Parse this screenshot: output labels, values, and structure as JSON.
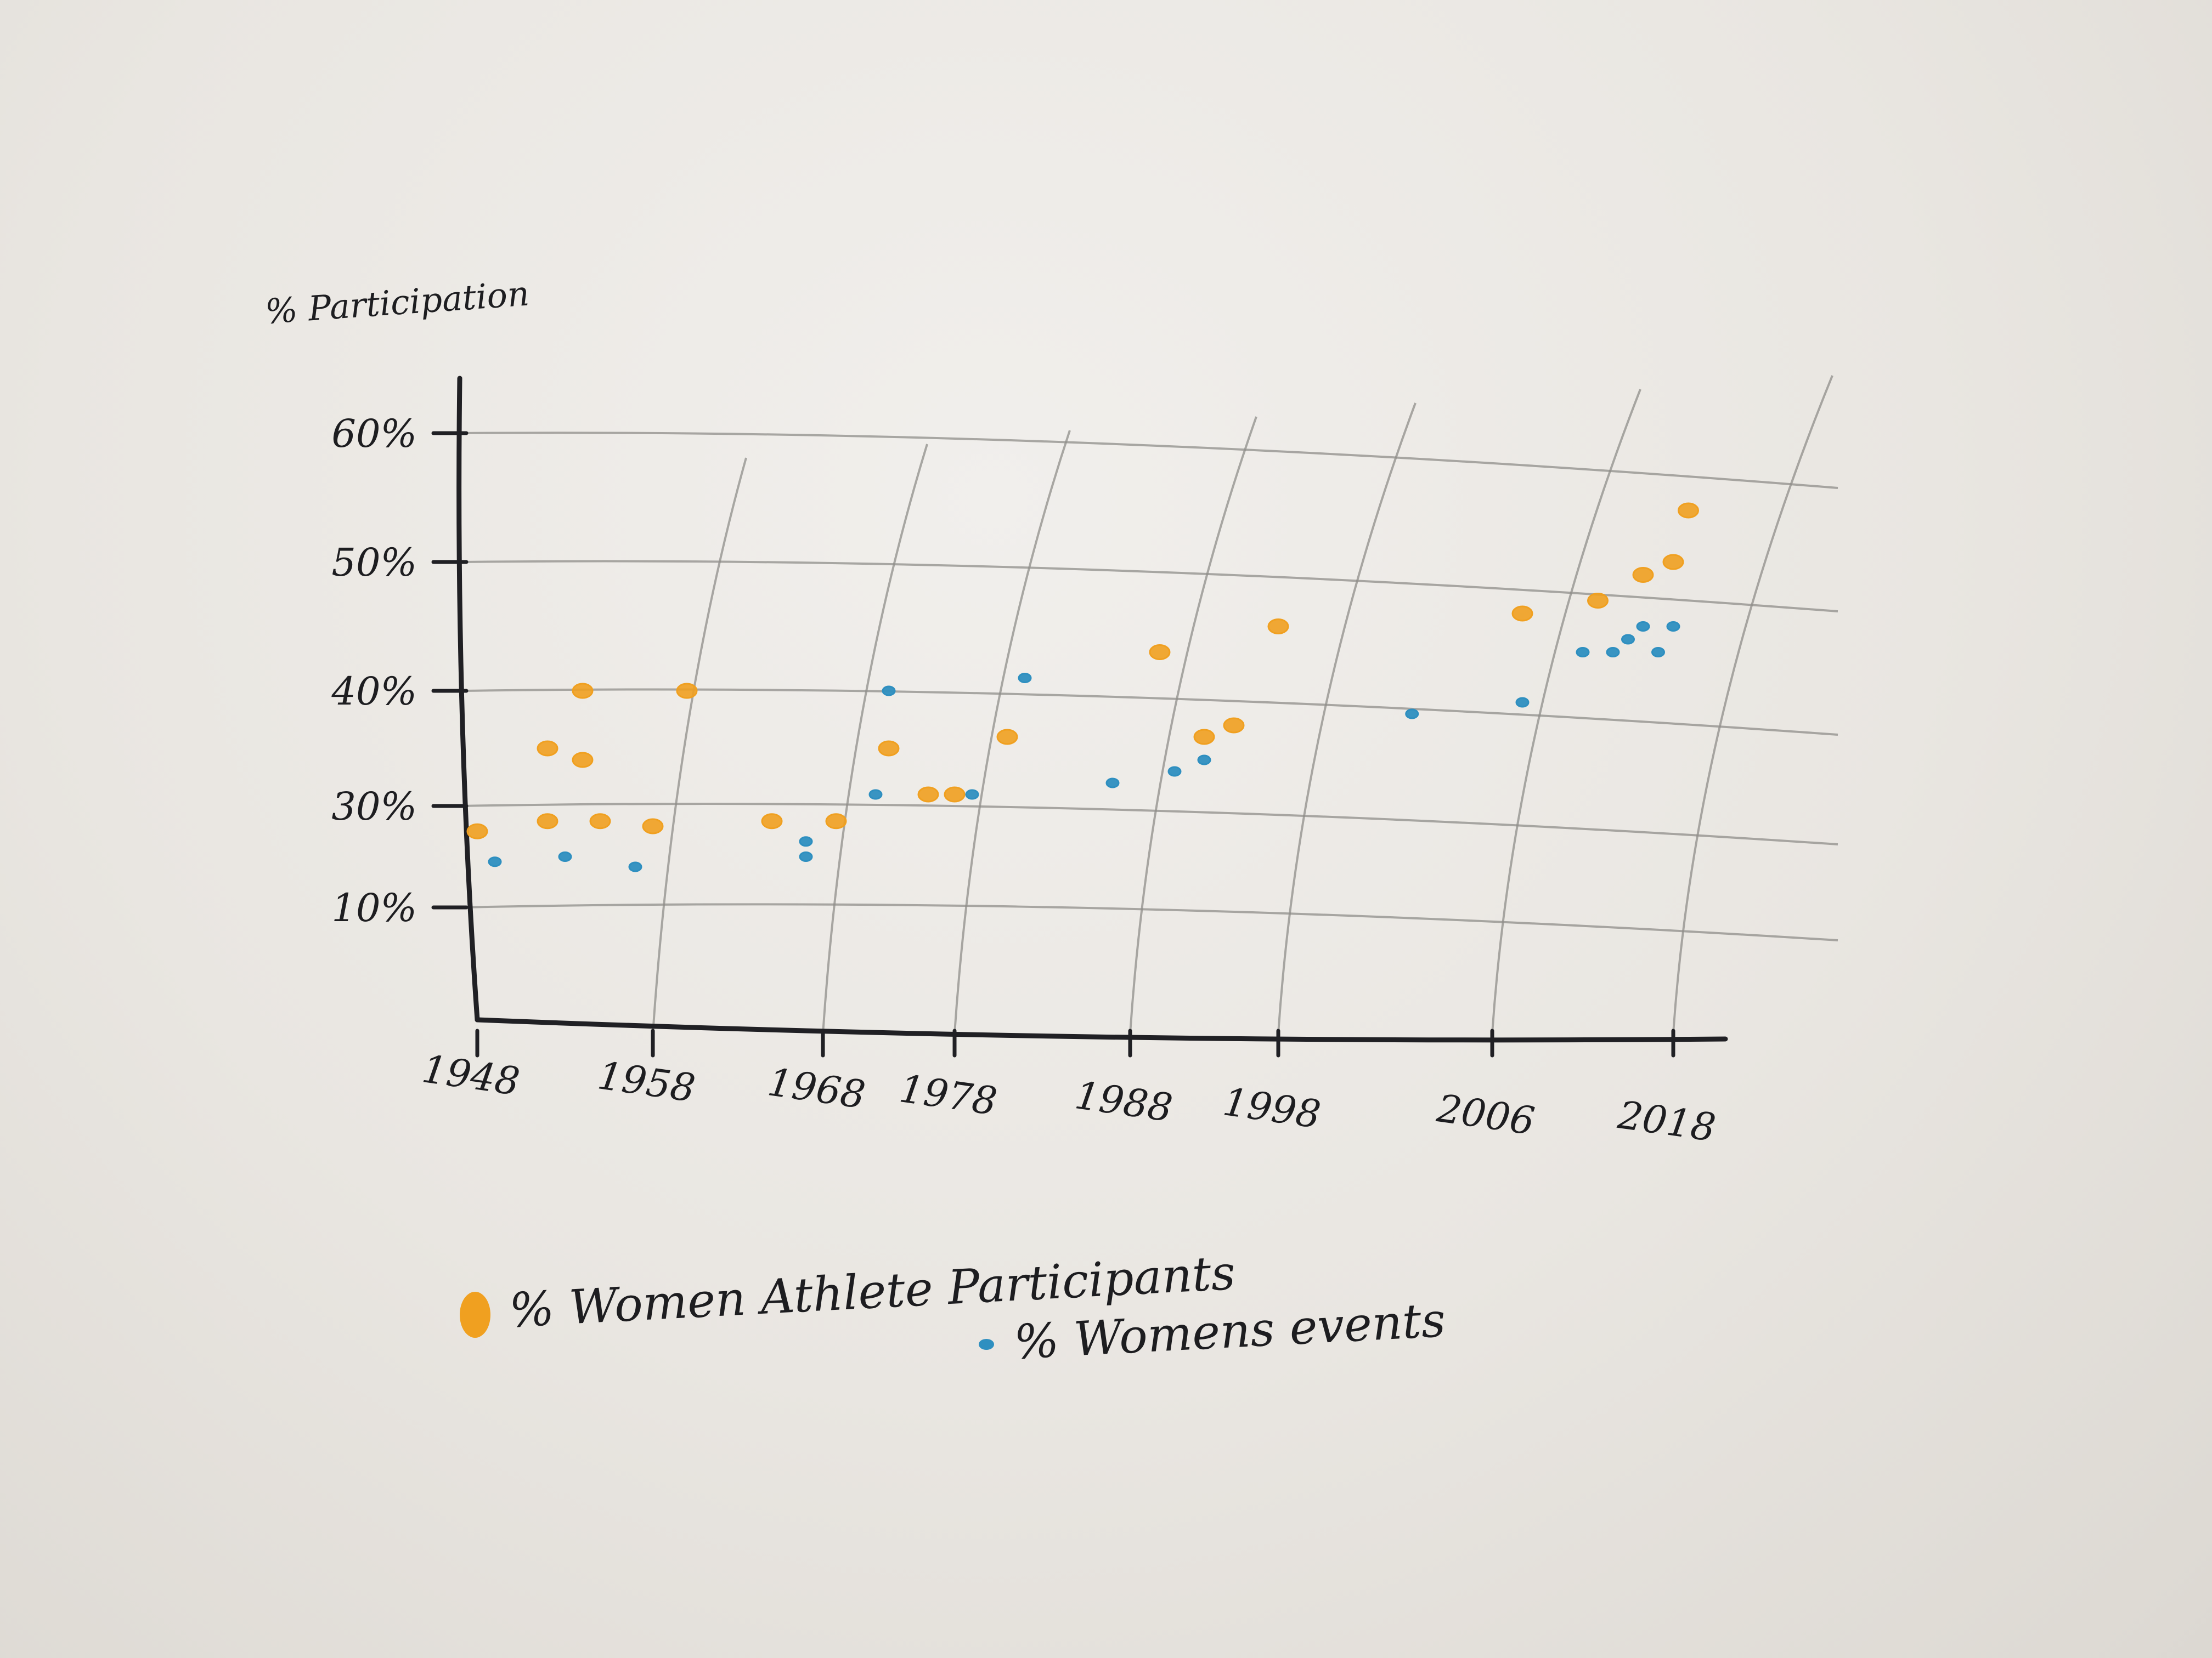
{
  "chart_data": {
    "type": "scatter",
    "ylabel": "% Participation",
    "xlabel": "",
    "x_ticks": [
      "1948",
      "1958",
      "1968",
      "1978",
      "1988",
      "1998",
      "2006",
      "2018"
    ],
    "x_tick_years": [
      1948,
      1958,
      1968,
      1978,
      1988,
      1998,
      2006,
      2018
    ],
    "y_ticks": [
      "10%",
      "30%",
      "40%",
      "50%",
      "60%"
    ],
    "y_tick_values": [
      10,
      30,
      40,
      50,
      60
    ],
    "xlim": [
      1947,
      2020
    ],
    "ylim": [
      10,
      60
    ],
    "grid": true,
    "legend_position": "bottom",
    "series": [
      {
        "name": "% Women Athlete Participants",
        "color": "#f0a020",
        "points": [
          {
            "x": 1948,
            "y": 25
          },
          {
            "x": 1952,
            "y": 27
          },
          {
            "x": 1952,
            "y": 35
          },
          {
            "x": 1954,
            "y": 40
          },
          {
            "x": 1954,
            "y": 34
          },
          {
            "x": 1955,
            "y": 27
          },
          {
            "x": 1958,
            "y": 26
          },
          {
            "x": 1960,
            "y": 40
          },
          {
            "x": 1965,
            "y": 27
          },
          {
            "x": 1969,
            "y": 27
          },
          {
            "x": 1973,
            "y": 35
          },
          {
            "x": 1976,
            "y": 31
          },
          {
            "x": 1978,
            "y": 31
          },
          {
            "x": 1981,
            "y": 36
          },
          {
            "x": 1990,
            "y": 43
          },
          {
            "x": 1993,
            "y": 36
          },
          {
            "x": 1995,
            "y": 37
          },
          {
            "x": 1998,
            "y": 45
          },
          {
            "x": 2008,
            "y": 46
          },
          {
            "x": 2013,
            "y": 47
          },
          {
            "x": 2016,
            "y": 49
          },
          {
            "x": 2018,
            "y": 50
          },
          {
            "x": 2019,
            "y": 54
          }
        ]
      },
      {
        "name": "% Womens events",
        "color": "#2e8fc0",
        "points": [
          {
            "x": 1949,
            "y": 19
          },
          {
            "x": 1953,
            "y": 20
          },
          {
            "x": 1957,
            "y": 18
          },
          {
            "x": 1967,
            "y": 20
          },
          {
            "x": 1967,
            "y": 23
          },
          {
            "x": 1972,
            "y": 31
          },
          {
            "x": 1973,
            "y": 40
          },
          {
            "x": 1979,
            "y": 31
          },
          {
            "x": 1982,
            "y": 41
          },
          {
            "x": 1987,
            "y": 32
          },
          {
            "x": 1991,
            "y": 33
          },
          {
            "x": 1993,
            "y": 34
          },
          {
            "x": 2003,
            "y": 38
          },
          {
            "x": 2008,
            "y": 39
          },
          {
            "x": 2012,
            "y": 43
          },
          {
            "x": 2014,
            "y": 43
          },
          {
            "x": 2015,
            "y": 44
          },
          {
            "x": 2016,
            "y": 45
          },
          {
            "x": 2017,
            "y": 43
          },
          {
            "x": 2018,
            "y": 45
          }
        ]
      }
    ]
  }
}
